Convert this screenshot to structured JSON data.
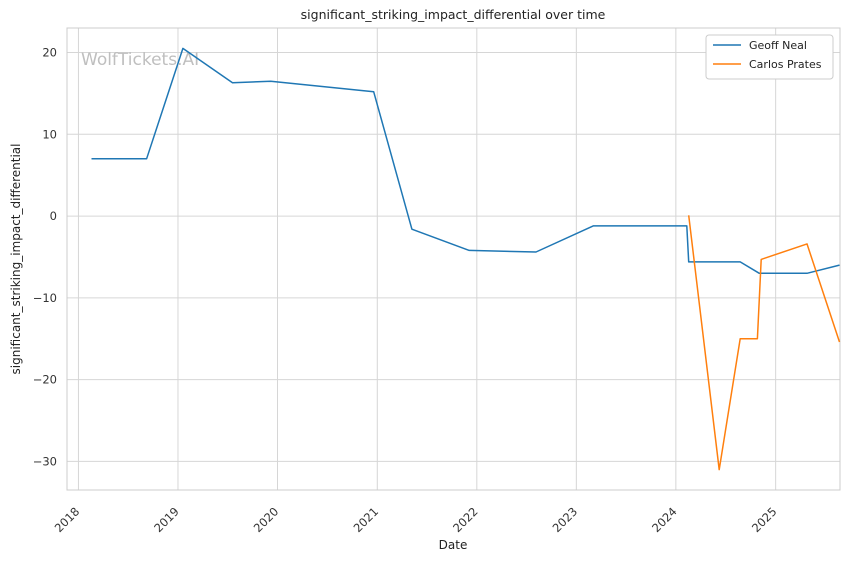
{
  "chart_data": {
    "type": "line",
    "title": "significant_striking_impact_differential over time",
    "xlabel": "Date",
    "ylabel": "significant_striking_impact_differential",
    "x_ticks": [
      "2018",
      "2019",
      "2020",
      "2021",
      "2022",
      "2023",
      "2024",
      "2025"
    ],
    "y_ticks": [
      20,
      10,
      0,
      -10,
      -20,
      -30
    ],
    "ylim": [
      -33.5,
      23
    ],
    "xlim": [
      "2017-11-20",
      "2025-08-25"
    ],
    "grid": true,
    "legend_position": "top-right",
    "watermark": "WolfTickets.AI",
    "series": [
      {
        "name": "Geoff Neal",
        "color": "#1f77b4",
        "points": [
          {
            "date": "2018-02-18",
            "value": 7.0
          },
          {
            "date": "2018-09-08",
            "value": 7.0
          },
          {
            "date": "2019-01-19",
            "value": 20.5
          },
          {
            "date": "2019-07-20",
            "value": 16.3
          },
          {
            "date": "2019-12-07",
            "value": 16.5
          },
          {
            "date": "2020-12-19",
            "value": 15.2
          },
          {
            "date": "2021-05-08",
            "value": -1.6
          },
          {
            "date": "2021-12-04",
            "value": -4.2
          },
          {
            "date": "2022-08-06",
            "value": -4.4
          },
          {
            "date": "2023-03-04",
            "value": -1.2
          },
          {
            "date": "2024-02-10",
            "value": -1.2
          },
          {
            "date": "2024-02-17",
            "value": -5.6
          },
          {
            "date": "2024-08-24",
            "value": -5.6
          },
          {
            "date": "2024-11-02",
            "value": -7.0
          },
          {
            "date": "2025-04-26",
            "value": -7.0
          },
          {
            "date": "2025-08-23",
            "value": -6.0
          }
        ]
      },
      {
        "name": "Carlos Prates",
        "color": "#ff7f0e",
        "points": [
          {
            "date": "2024-02-17",
            "value": 0.1
          },
          {
            "date": "2024-06-08",
            "value": -31.0
          },
          {
            "date": "2024-08-24",
            "value": -15.0
          },
          {
            "date": "2024-10-26",
            "value": -15.0
          },
          {
            "date": "2024-11-09",
            "value": -5.3
          },
          {
            "date": "2025-04-26",
            "value": -3.4
          },
          {
            "date": "2025-08-23",
            "value": -15.4
          }
        ]
      }
    ]
  }
}
